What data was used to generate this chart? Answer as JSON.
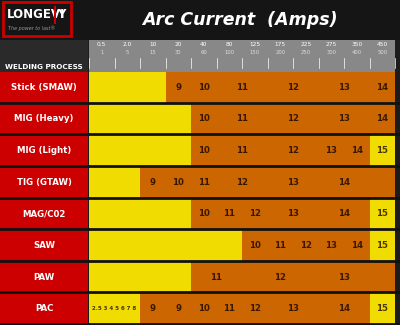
{
  "title": "Arc Current  (Amps)",
  "bg_color": "#1c1c1c",
  "header_bg": "#777777",
  "row_label_bg": "#cc0000",
  "cell_yellow": "#f0dc00",
  "cell_orange": "#cc6600",
  "amp_top_labels": [
    "0.5",
    "2.0",
    "10",
    "20",
    "40",
    "80",
    "125",
    "175",
    "225",
    "275",
    "350",
    "450"
  ],
  "amp_bot_labels": [
    "1",
    "5",
    "15",
    "30",
    "60",
    "100",
    "150",
    "200",
    "250",
    "300",
    "400",
    "500"
  ],
  "num_cols": 12,
  "rows": [
    {
      "name": "Stick (SMAW)",
      "segments": [
        {
          "start": 0,
          "end": 3,
          "color": "#f0dc00",
          "label": ""
        },
        {
          "start": 3,
          "end": 4,
          "color": "#cc6600",
          "label": "9"
        },
        {
          "start": 4,
          "end": 5,
          "color": "#cc6600",
          "label": "10"
        },
        {
          "start": 5,
          "end": 7,
          "color": "#cc6600",
          "label": "11"
        },
        {
          "start": 7,
          "end": 9,
          "color": "#cc6600",
          "label": "12"
        },
        {
          "start": 9,
          "end": 11,
          "color": "#cc6600",
          "label": "13"
        },
        {
          "start": 11,
          "end": 12,
          "color": "#cc6600",
          "label": "14"
        }
      ]
    },
    {
      "name": "MIG (Heavy)",
      "segments": [
        {
          "start": 0,
          "end": 4,
          "color": "#f0dc00",
          "label": ""
        },
        {
          "start": 4,
          "end": 5,
          "color": "#cc6600",
          "label": "10"
        },
        {
          "start": 5,
          "end": 7,
          "color": "#cc6600",
          "label": "11"
        },
        {
          "start": 7,
          "end": 9,
          "color": "#cc6600",
          "label": "12"
        },
        {
          "start": 9,
          "end": 11,
          "color": "#cc6600",
          "label": "13"
        },
        {
          "start": 11,
          "end": 12,
          "color": "#cc6600",
          "label": "14"
        }
      ]
    },
    {
      "name": "MIG (Light)",
      "segments": [
        {
          "start": 0,
          "end": 4,
          "color": "#f0dc00",
          "label": ""
        },
        {
          "start": 4,
          "end": 5,
          "color": "#cc6600",
          "label": "10"
        },
        {
          "start": 5,
          "end": 7,
          "color": "#cc6600",
          "label": "11"
        },
        {
          "start": 7,
          "end": 9,
          "color": "#cc6600",
          "label": "12"
        },
        {
          "start": 9,
          "end": 10,
          "color": "#cc6600",
          "label": "13"
        },
        {
          "start": 10,
          "end": 11,
          "color": "#cc6600",
          "label": "14"
        },
        {
          "start": 11,
          "end": 12,
          "color": "#f0dc00",
          "label": "15"
        }
      ]
    },
    {
      "name": "TIG (GTAW)",
      "segments": [
        {
          "start": 0,
          "end": 2,
          "color": "#f0dc00",
          "label": ""
        },
        {
          "start": 2,
          "end": 3,
          "color": "#cc6600",
          "label": "9"
        },
        {
          "start": 3,
          "end": 4,
          "color": "#cc6600",
          "label": "10"
        },
        {
          "start": 4,
          "end": 5,
          "color": "#cc6600",
          "label": "11"
        },
        {
          "start": 5,
          "end": 7,
          "color": "#cc6600",
          "label": "12"
        },
        {
          "start": 7,
          "end": 9,
          "color": "#cc6600",
          "label": "13"
        },
        {
          "start": 9,
          "end": 11,
          "color": "#cc6600",
          "label": "14"
        },
        {
          "start": 11,
          "end": 12,
          "color": "#cc6600",
          "label": ""
        }
      ]
    },
    {
      "name": "MAG/C02",
      "segments": [
        {
          "start": 0,
          "end": 4,
          "color": "#f0dc00",
          "label": ""
        },
        {
          "start": 4,
          "end": 5,
          "color": "#cc6600",
          "label": "10"
        },
        {
          "start": 5,
          "end": 6,
          "color": "#cc6600",
          "label": "11"
        },
        {
          "start": 6,
          "end": 7,
          "color": "#cc6600",
          "label": "12"
        },
        {
          "start": 7,
          "end": 9,
          "color": "#cc6600",
          "label": "13"
        },
        {
          "start": 9,
          "end": 11,
          "color": "#cc6600",
          "label": "14"
        },
        {
          "start": 11,
          "end": 12,
          "color": "#f0dc00",
          "label": "15"
        }
      ]
    },
    {
      "name": "SAW",
      "segments": [
        {
          "start": 0,
          "end": 6,
          "color": "#f0dc00",
          "label": ""
        },
        {
          "start": 6,
          "end": 7,
          "color": "#cc6600",
          "label": "10"
        },
        {
          "start": 7,
          "end": 8,
          "color": "#cc6600",
          "label": "11"
        },
        {
          "start": 8,
          "end": 9,
          "color": "#cc6600",
          "label": "12"
        },
        {
          "start": 9,
          "end": 10,
          "color": "#cc6600",
          "label": "13"
        },
        {
          "start": 10,
          "end": 11,
          "color": "#cc6600",
          "label": "14"
        },
        {
          "start": 11,
          "end": 12,
          "color": "#f0dc00",
          "label": "15"
        }
      ]
    },
    {
      "name": "PAW",
      "segments": [
        {
          "start": 0,
          "end": 4,
          "color": "#f0dc00",
          "label": ""
        },
        {
          "start": 4,
          "end": 6,
          "color": "#cc6600",
          "label": "11"
        },
        {
          "start": 6,
          "end": 9,
          "color": "#cc6600",
          "label": "12"
        },
        {
          "start": 9,
          "end": 11,
          "color": "#cc6600",
          "label": "13"
        },
        {
          "start": 11,
          "end": 12,
          "color": "#cc6600",
          "label": ""
        }
      ]
    },
    {
      "name": "PAC",
      "segments": [
        {
          "start": 0,
          "end": 2,
          "color": "#f0dc00",
          "label": "2.5 3 4 5 6 7 8"
        },
        {
          "start": 2,
          "end": 3,
          "color": "#cc6600",
          "label": "9"
        },
        {
          "start": 3,
          "end": 4,
          "color": "#cc6600",
          "label": "9"
        },
        {
          "start": 4,
          "end": 5,
          "color": "#cc6600",
          "label": "10"
        },
        {
          "start": 5,
          "end": 6,
          "color": "#cc6600",
          "label": "11"
        },
        {
          "start": 6,
          "end": 7,
          "color": "#cc6600",
          "label": "12"
        },
        {
          "start": 7,
          "end": 9,
          "color": "#cc6600",
          "label": "13"
        },
        {
          "start": 9,
          "end": 11,
          "color": "#cc6600",
          "label": "14"
        },
        {
          "start": 11,
          "end": 12,
          "color": "#f0dc00",
          "label": "15"
        }
      ]
    }
  ]
}
